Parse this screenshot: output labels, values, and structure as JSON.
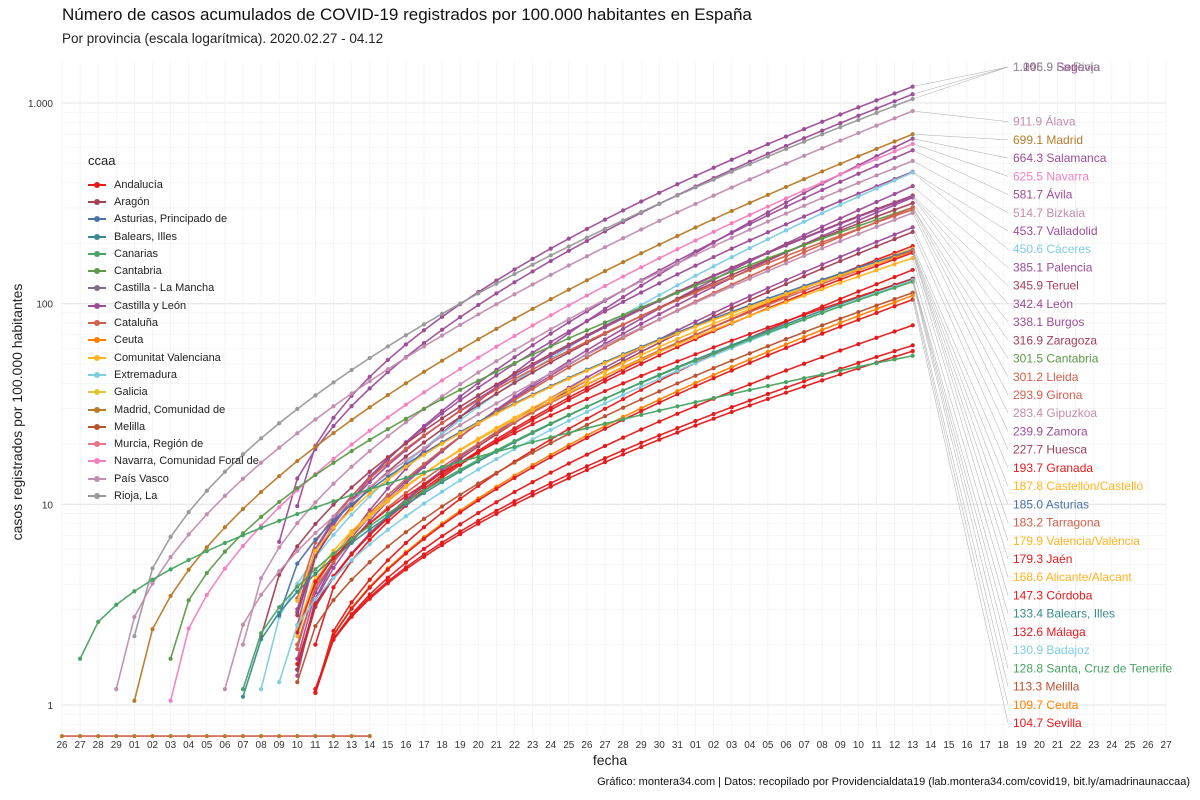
{
  "chart_data": {
    "type": "line",
    "title": "Número de casos acumulados de COVID-19 registrados por 100.000 habitantes en España",
    "subtitle": "Por provincia (escala logarítmica). 2020.02.27 - 04.12",
    "xlabel": "fecha",
    "ylabel": "casos registrados por 100.000 habitantes",
    "caption": "Gráfico: montera34.com | Datos: recopilado por Providencialdata19 (lab.montera34.com/covid19, bit.ly/amadrinaunaccaa)",
    "yscale": "log",
    "ylim": [
      0.7,
      1500
    ],
    "ytick_labels": [
      "1",
      "10",
      "100",
      "1.000"
    ],
    "ytick_values": [
      1,
      10,
      100,
      1000
    ],
    "xtick_labels": [
      "26",
      "27",
      "28",
      "29",
      "01",
      "02",
      "03",
      "04",
      "05",
      "06",
      "07",
      "08",
      "09",
      "10",
      "11",
      "12",
      "13",
      "14",
      "15",
      "16",
      "17",
      "18",
      "19",
      "20",
      "21",
      "22",
      "23",
      "24",
      "25",
      "26",
      "27",
      "28",
      "29",
      "30",
      "31",
      "01",
      "02",
      "03",
      "04",
      "05",
      "06",
      "07",
      "08",
      "09",
      "10",
      "11",
      "12",
      "13",
      "14",
      "15",
      "16",
      "17",
      "18",
      "19",
      "20",
      "21",
      "22",
      "23",
      "24",
      "25",
      "26",
      "27"
    ],
    "grid": true,
    "legend_position": "left",
    "legend": {
      "title": "ccaa",
      "entries": [
        {
          "name": "Andalucía",
          "color": "#e41a1c"
        },
        {
          "name": "Aragón",
          "color": "#a24057"
        },
        {
          "name": "Asturias, Principado de",
          "color": "#4a72a6"
        },
        {
          "name": "Balears, Illes",
          "color": "#3a8b8f"
        },
        {
          "name": "Canarias",
          "color": "#48a462"
        },
        {
          "name": "Cantabria",
          "color": "#5e9a4a"
        },
        {
          "name": "Castilla - La Mancha",
          "color": "#7e6e85"
        },
        {
          "name": "Castilla y León",
          "color": "#9c4d98"
        },
        {
          "name": "Cataluña",
          "color": "#d1604c"
        },
        {
          "name": "Ceuta",
          "color": "#ff7f00"
        },
        {
          "name": "Comunitat Valenciana",
          "color": "#ffb31f"
        },
        {
          "name": "Extremadura",
          "color": "#7fcde3"
        },
        {
          "name": "Galicia",
          "color": "#e1c62f"
        },
        {
          "name": "Madrid, Comunidad de",
          "color": "#b77b2a"
        },
        {
          "name": "Melilla",
          "color": "#b9532f"
        },
        {
          "name": "Murcia, Región de",
          "color": "#e1758c"
        },
        {
          "name": "Navarra, Comunidad Foral de",
          "color": "#f281bf"
        },
        {
          "name": "País Vasco",
          "color": "#c28daf"
        },
        {
          "name": "Rioja, La",
          "color": "#999999"
        }
      ]
    },
    "series": [
      {
        "label": "1.206.9 Segovia",
        "color": "#9c4d98",
        "start": 13,
        "v0": 9.8,
        "end": 1206.9
      },
      {
        "label": "1.105.9 Soria",
        "color": "#9c4d98",
        "start": 12,
        "v0": 6.5,
        "end": 1105.9
      },
      {
        "label": "1.046.9 La Rioja",
        "color": "#999999",
        "start": 4,
        "v0": 2.2,
        "end": 1046.9
      },
      {
        "label": "911.9 Álava",
        "color": "#c28daf",
        "start": 3,
        "v0": 1.2,
        "end": 911.9
      },
      {
        "label": "699.1 Madrid",
        "color": "#b77b2a",
        "start": 4,
        "v0": 1.05,
        "end": 699.1
      },
      {
        "label": "664.3 Salamanca",
        "color": "#9c4d98",
        "start": 13,
        "v0": 1.4,
        "end": 664.3
      },
      {
        "label": "625.5 Navarra",
        "color": "#f281bf",
        "start": 6,
        "v0": 1.05,
        "end": 625.5
      },
      {
        "label": "581.7 Ávila",
        "color": "#9c4d98",
        "start": 13,
        "v0": 2.5,
        "end": 581.7
      },
      {
        "label": "514.7 Bizkaia",
        "color": "#c28daf",
        "start": 10,
        "v0": 2.0,
        "end": 514.7
      },
      {
        "label": "453.7 Valladolid",
        "color": "#9c4d98",
        "start": 13,
        "v0": 2.9,
        "end": 453.7
      },
      {
        "label": "450.6 Cáceres",
        "color": "#7fcde3",
        "start": 11,
        "v0": 1.2,
        "end": 450.6
      },
      {
        "label": "385.1 Palencia",
        "color": "#9c4d98",
        "start": 13,
        "v0": 1.5,
        "end": 385.1
      },
      {
        "label": "345.9 Teruel",
        "color": "#a24057",
        "start": 11,
        "v0": 2.2,
        "end": 345.9
      },
      {
        "label": "342.4 León",
        "color": "#9c4d98",
        "start": 13,
        "v0": 3.0,
        "end": 342.4
      },
      {
        "label": "338.1 Burgos",
        "color": "#9c4d98",
        "start": 13,
        "v0": 1.7,
        "end": 338.1
      },
      {
        "label": "316.9 Zaragoza",
        "color": "#a24057",
        "start": 13,
        "v0": 2.8,
        "end": 316.9
      },
      {
        "label": "301.5 Cantabria",
        "color": "#5e9a4a",
        "start": 6,
        "v0": 1.7,
        "end": 301.5
      },
      {
        "label": "301.2 Lleida",
        "color": "#d1604c",
        "start": 13,
        "v0": 1.9,
        "end": 301.2
      },
      {
        "label": "293.9 Girona",
        "color": "#d1604c",
        "start": 13,
        "v0": 3.4,
        "end": 293.9
      },
      {
        "label": "283.4 Gipuzkoa",
        "color": "#c28daf",
        "start": 9,
        "v0": 1.2,
        "end": 283.4
      },
      {
        "label": "239.9 Zamora",
        "color": "#9c4d98",
        "start": 13,
        "v0": 1.5,
        "end": 239.9
      },
      {
        "label": "227.7 Huesca",
        "color": "#a24057",
        "start": 13,
        "v0": 1.5,
        "end": 227.7
      },
      {
        "label": "193.7 Granada",
        "color": "#e41a1c",
        "start": 13,
        "v0": 1.6,
        "end": 193.7
      },
      {
        "label": "187.8 Castellón/Castelló",
        "color": "#ffb31f",
        "start": 13,
        "v0": 2.2,
        "end": 187.8
      },
      {
        "label": "185.0 Asturias",
        "color": "#4a72a6",
        "start": 12,
        "v0": 2.8,
        "end": 185.0
      },
      {
        "label": "183.2 Tarragona",
        "color": "#d1604c",
        "start": 13,
        "v0": 2.0,
        "end": 183.2
      },
      {
        "label": "179.9 Valencia/València",
        "color": "#ffb31f",
        "start": 13,
        "v0": 3.3,
        "end": 179.9
      },
      {
        "label": "179.3 Jaén",
        "color": "#e41a1c",
        "start": 14,
        "v0": 2.0,
        "end": 179.3
      },
      {
        "label": "168.6 Alicante/Alacant",
        "color": "#ffb31f",
        "start": 13,
        "v0": 2.4,
        "end": 168.6
      },
      {
        "label": "147.3 Córdoba",
        "color": "#e41a1c",
        "start": 14,
        "v0": 1.15,
        "end": 147.3
      },
      {
        "label": "133.4 Balears, Illes",
        "color": "#3a8b8f",
        "start": 10,
        "v0": 1.1,
        "end": 133.4
      },
      {
        "label": "132.6 Málaga",
        "color": "#e41a1c",
        "start": 13,
        "v0": 2.3,
        "end": 132.6
      },
      {
        "label": "130.9 Badajoz",
        "color": "#7fcde3",
        "start": 12,
        "v0": 1.3,
        "end": 130.9
      },
      {
        "label": "128.8 Santa, Cruz de Tenerife",
        "color": "#48a462",
        "start": 10,
        "v0": 1.2,
        "end": 128.8
      },
      {
        "label": "113.3 Melilla",
        "color": "#b9532f",
        "start": 13,
        "v0": 1.3,
        "end": 113.3
      },
      {
        "label": "109.7 Ceuta",
        "color": "#ff7f00",
        "start": 14,
        "v0": 1.15,
        "end": 109.7
      },
      {
        "label": "104.7 Sevilla",
        "color": "#e41a1c",
        "start": 14,
        "v0": 1.15,
        "end": 104.7
      },
      {
        "label": "",
        "color": "#e41a1c",
        "start": 14,
        "v0": 1.15,
        "end": 78
      },
      {
        "label": "",
        "color": "#e41a1c",
        "start": 14,
        "v0": 1.2,
        "end": 62
      },
      {
        "label": "",
        "color": "#e41a1c",
        "start": 14,
        "v0": 1.2,
        "end": 58
      },
      {
        "label": "",
        "color": "#48a462",
        "start": 1,
        "v0": 1.7,
        "end": 55
      }
    ]
  }
}
